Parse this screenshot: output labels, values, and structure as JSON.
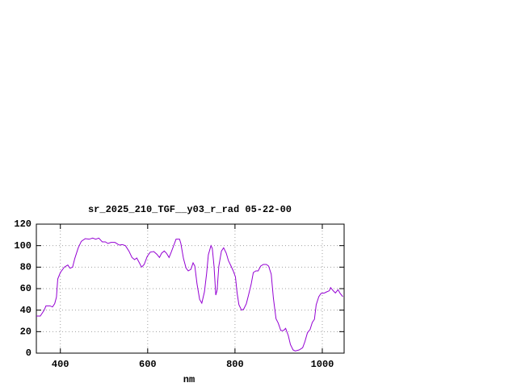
{
  "chart_data": {
    "type": "line",
    "title": "sr_2025_210_TGF__y03_r_rad 05-22-00",
    "x_label": "nm",
    "x": [
      345,
      354,
      363,
      367,
      376,
      382,
      387,
      391,
      394,
      400,
      409,
      417,
      422,
      428,
      433,
      441,
      448,
      457,
      466,
      474,
      481,
      488,
      496,
      503,
      509,
      516,
      525,
      535,
      542,
      549,
      557,
      564,
      570,
      575,
      581,
      586,
      592,
      599,
      606,
      614,
      621,
      627,
      632,
      638,
      643,
      649,
      654,
      660,
      665,
      673,
      676,
      682,
      688,
      693,
      699,
      704,
      708,
      713,
      719,
      724,
      730,
      735,
      739,
      745,
      748,
      752,
      756,
      759,
      763,
      769,
      774,
      780,
      785,
      791,
      796,
      801,
      805,
      809,
      815,
      820,
      826,
      831,
      837,
      842,
      848,
      853,
      859,
      865,
      872,
      877,
      883,
      888,
      894,
      899,
      905,
      911,
      916,
      922,
      927,
      933,
      938,
      947,
      955,
      960,
      966,
      972,
      977,
      982,
      986,
      992,
      997,
      1005,
      1010,
      1016,
      1019,
      1025,
      1030,
      1036,
      1041,
      1047
    ],
    "series": [
      {
        "color": "#9400d3",
        "values": [
          34.5,
          34.5,
          40,
          44,
          44,
          43,
          46,
          52,
          69,
          75,
          80,
          82,
          79,
          80,
          88,
          98,
          104,
          106.5,
          106,
          107,
          106,
          107,
          103.5,
          103.5,
          102,
          103,
          103,
          100.5,
          101,
          100,
          95,
          89,
          87,
          88.5,
          84,
          80,
          82.5,
          90,
          94,
          94.5,
          92,
          89,
          93,
          95,
          93,
          89,
          94,
          100.5,
          106,
          106,
          102,
          88,
          79,
          76.5,
          78,
          84,
          81,
          64.5,
          50,
          46.5,
          57,
          74,
          91.5,
          100,
          97.5,
          81,
          54,
          58.5,
          81,
          95,
          98,
          93,
          86,
          81,
          76.5,
          71,
          55.5,
          45,
          40,
          41,
          46,
          54,
          64,
          75,
          76.5,
          76.5,
          81,
          82.5,
          82.5,
          81,
          73.5,
          51,
          32,
          28,
          21,
          21,
          23,
          16.5,
          8,
          3,
          2,
          3,
          5,
          10.5,
          19,
          22,
          28.5,
          31.5,
          45,
          52.5,
          55.5,
          56,
          57,
          58,
          61,
          58,
          56,
          59,
          55.5,
          52.5
        ]
      }
    ],
    "xlim": [
      345,
      1050
    ],
    "ylim": [
      0,
      120
    ],
    "xticks": [
      400,
      600,
      800,
      1000
    ],
    "yticks": [
      0,
      20,
      40,
      60,
      80,
      100,
      120
    ],
    "grid": true
  }
}
